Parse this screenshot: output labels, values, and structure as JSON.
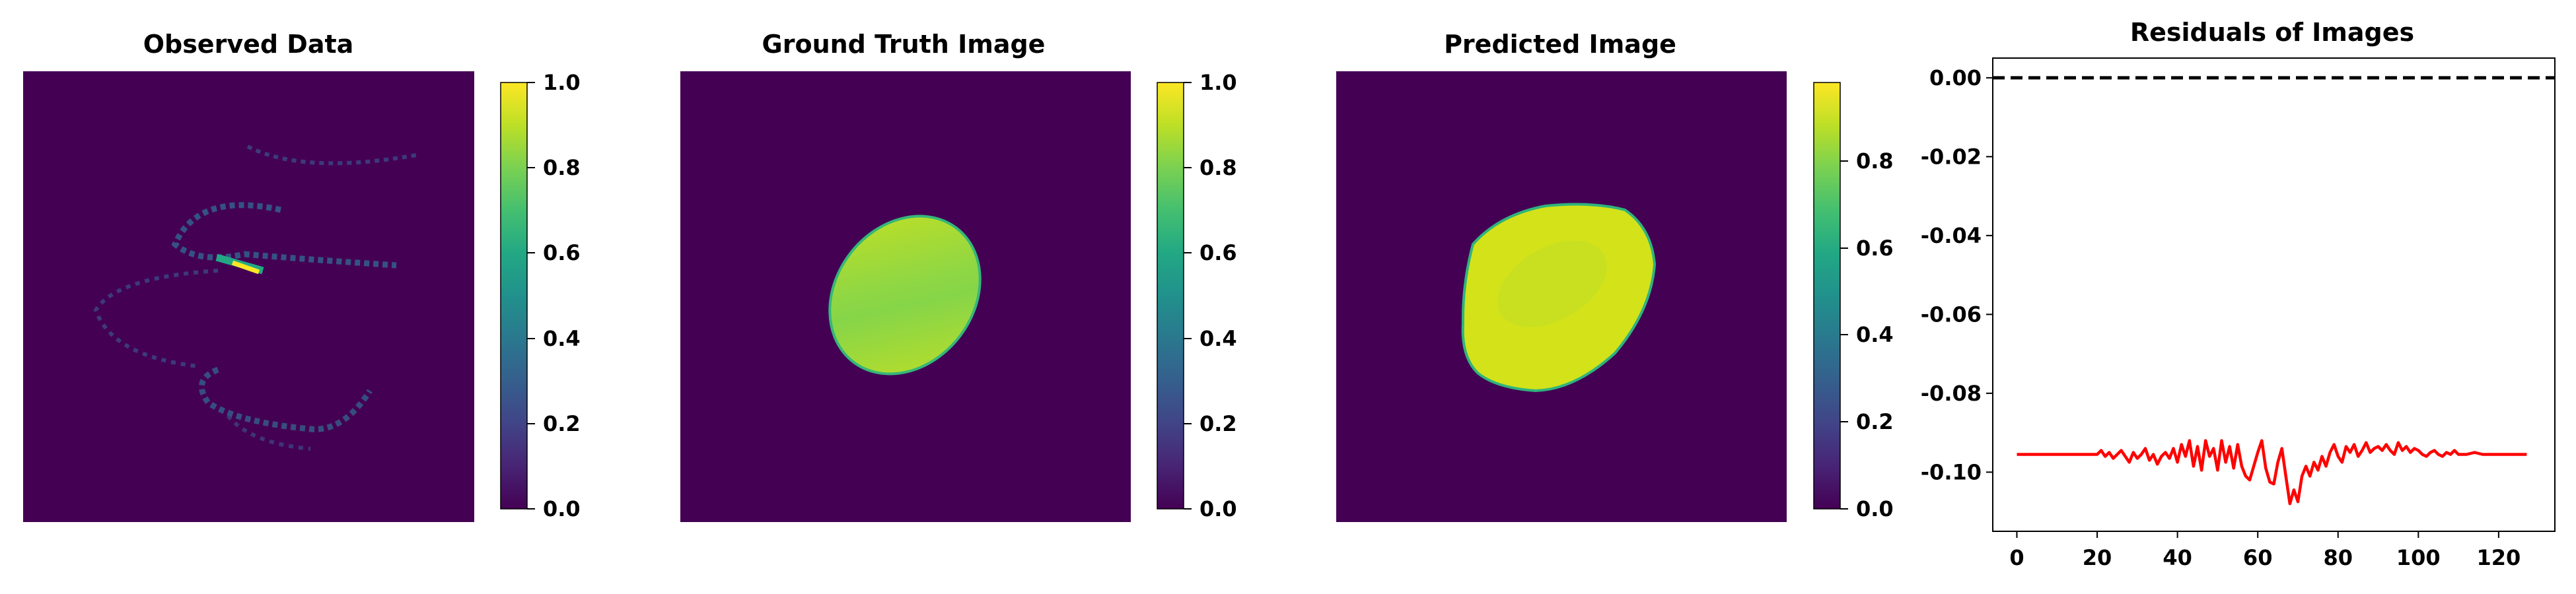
{
  "chart_data": [
    {
      "type": "heatmap",
      "title": "Observed Data",
      "colormap": "viridis",
      "colorbar": {
        "min": 0.0,
        "max": 1.0,
        "ticks": [
          "0.0",
          "0.2",
          "0.4",
          "0.6",
          "0.8",
          "1.0"
        ]
      },
      "grid": false,
      "content": "faint spiral arcs of low intensity (~0.1-0.3) with a bright streak reaching 1.0 near the upper-left center"
    },
    {
      "type": "heatmap",
      "title": "Ground Truth Image",
      "colormap": "viridis",
      "colorbar": {
        "min": 0.0,
        "max": 1.0,
        "ticks": [
          "0.0",
          "0.2",
          "0.4",
          "0.6",
          "0.8",
          "1.0"
        ]
      },
      "grid": false,
      "content": "tilted ellipse with values ~0.75-0.95 on background 0.0"
    },
    {
      "type": "heatmap",
      "title": "Predicted Image",
      "colormap": "viridis",
      "colorbar": {
        "min": 0.0,
        "max": 0.98,
        "ticks": [
          "0.0",
          "0.2",
          "0.4",
          "0.6",
          "0.8"
        ]
      },
      "grid": false,
      "content": "larger tilted blob with values ~0.85-0.95 on background 0.0"
    },
    {
      "type": "line",
      "title": "Residuals of Images",
      "xlabel": "",
      "ylabel": "",
      "xlim": [
        -6,
        134
      ],
      "ylim": [
        -0.115,
        0.005
      ],
      "xticks": [
        "0",
        "20",
        "40",
        "60",
        "80",
        "100",
        "120"
      ],
      "yticks": [
        "0.00",
        "-0.02",
        "-0.04",
        "-0.06",
        "-0.08",
        "-0.10"
      ],
      "grid": false,
      "reference_line": {
        "y": 0.0,
        "style": "dashed",
        "color": "#000000"
      },
      "series": [
        {
          "color": "#ff0000",
          "x": [
            0,
            2,
            4,
            6,
            8,
            10,
            12,
            14,
            16,
            18,
            20,
            21,
            22,
            23,
            24,
            25,
            26,
            27,
            28,
            29,
            30,
            31,
            32,
            33,
            34,
            35,
            36,
            37,
            38,
            39,
            40,
            41,
            42,
            43,
            44,
            45,
            46,
            47,
            48,
            49,
            50,
            51,
            52,
            53,
            54,
            55,
            56,
            57,
            58,
            59,
            60,
            61,
            62,
            63,
            64,
            65,
            66,
            67,
            68,
            69,
            70,
            71,
            72,
            73,
            74,
            75,
            76,
            77,
            78,
            79,
            80,
            81,
            82,
            83,
            84,
            85,
            86,
            87,
            88,
            89,
            90,
            91,
            92,
            93,
            94,
            95,
            96,
            97,
            98,
            99,
            100,
            101,
            102,
            103,
            104,
            105,
            106,
            107,
            108,
            109,
            110,
            112,
            114,
            116,
            118,
            120,
            122,
            124,
            126,
            127
          ],
          "y": [
            -0.0955,
            -0.0955,
            -0.0955,
            -0.0955,
            -0.0955,
            -0.0955,
            -0.0955,
            -0.0955,
            -0.0955,
            -0.0955,
            -0.0955,
            -0.0945,
            -0.096,
            -0.095,
            -0.0965,
            -0.0955,
            -0.0945,
            -0.096,
            -0.0975,
            -0.095,
            -0.0965,
            -0.0955,
            -0.094,
            -0.097,
            -0.0955,
            -0.098,
            -0.096,
            -0.095,
            -0.0965,
            -0.094,
            -0.0975,
            -0.093,
            -0.096,
            -0.092,
            -0.0985,
            -0.0935,
            -0.0995,
            -0.092,
            -0.096,
            -0.094,
            -0.0995,
            -0.092,
            -0.0975,
            -0.0935,
            -0.099,
            -0.093,
            -0.0985,
            -0.101,
            -0.102,
            -0.0985,
            -0.095,
            -0.092,
            -0.099,
            -0.1025,
            -0.103,
            -0.0975,
            -0.094,
            -0.101,
            -0.108,
            -0.1045,
            -0.1075,
            -0.101,
            -0.0985,
            -0.101,
            -0.0975,
            -0.0995,
            -0.096,
            -0.0985,
            -0.095,
            -0.093,
            -0.096,
            -0.0975,
            -0.0935,
            -0.095,
            -0.093,
            -0.096,
            -0.0945,
            -0.0925,
            -0.095,
            -0.094,
            -0.0935,
            -0.0945,
            -0.093,
            -0.0945,
            -0.0955,
            -0.0925,
            -0.0945,
            -0.0935,
            -0.095,
            -0.094,
            -0.0945,
            -0.0955,
            -0.096,
            -0.095,
            -0.0945,
            -0.0955,
            -0.096,
            -0.095,
            -0.0955,
            -0.0945,
            -0.0955,
            -0.0955,
            -0.095,
            -0.0955,
            -0.0955,
            -0.0955,
            -0.0955,
            -0.0955,
            -0.0955,
            -0.0955
          ]
        }
      ]
    }
  ]
}
